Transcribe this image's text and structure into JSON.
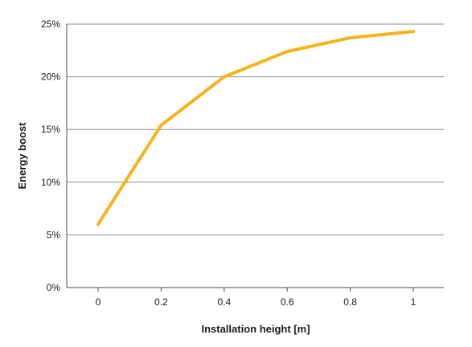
{
  "chart_data": {
    "type": "line",
    "xlabel": "Installation height [m]",
    "ylabel": "Energy boost",
    "x": [
      0,
      0.2,
      0.4,
      0.6,
      0.8,
      1
    ],
    "x_tick_labels": [
      "0",
      "0.2",
      "0.4",
      "0.6",
      "0.8",
      "1"
    ],
    "y_tick_values": [
      0,
      5,
      10,
      15,
      20,
      25
    ],
    "y_tick_labels": [
      "0%",
      "5%",
      "10%",
      "15%",
      "20%",
      "25%"
    ],
    "ylim": [
      0,
      25
    ],
    "grid": "horizontal",
    "series": [
      {
        "values": [
          6.0,
          15.4,
          20.0,
          22.4,
          23.7,
          24.3
        ],
        "color": "#f5b41a"
      }
    ]
  }
}
